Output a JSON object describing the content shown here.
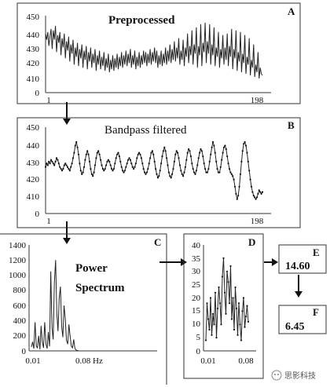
{
  "panels": {
    "A": {
      "letter": "A",
      "title": "Preprocessed",
      "yticks": [
        "450",
        "440",
        "430",
        "420",
        "410",
        "0"
      ],
      "xticks": [
        "1",
        "198"
      ]
    },
    "B": {
      "letter": "B",
      "title": "Bandpass filtered",
      "yticks": [
        "450",
        "440",
        "430",
        "420",
        "410",
        "0"
      ],
      "xticks": [
        "1",
        "198"
      ]
    },
    "C": {
      "letter": "C",
      "title_line1": "Power",
      "title_line2": "Spectrum",
      "yticks": [
        "1400",
        "1200",
        "1000",
        "800",
        "600",
        "400",
        "200",
        "0"
      ],
      "xticks": [
        "0.01",
        "0.08 Hz"
      ]
    },
    "D": {
      "letter": "D",
      "yticks": [
        "40",
        "35",
        "30",
        "25",
        "20",
        "15",
        "10",
        "5",
        "0"
      ],
      "xticks": [
        "0.01",
        "0.08"
      ]
    },
    "E": {
      "letter": "E",
      "value": "14.60"
    },
    "F": {
      "letter": "F",
      "value": "6.45"
    }
  },
  "watermark": "思影科技",
  "chart_data": [
    {
      "type": "line",
      "panel": "A",
      "title": "Preprocessed",
      "ylim": [
        405,
        450
      ],
      "x_range": [
        1,
        198
      ],
      "series": [
        {
          "values": [
            440,
            436,
            441,
            432,
            438,
            443,
            430,
            442,
            436,
            445,
            428,
            439,
            434,
            441,
            426,
            437,
            431,
            440,
            424,
            435,
            429,
            438,
            422,
            433,
            427,
            436,
            420,
            431,
            425,
            434,
            419,
            430,
            424,
            433,
            418,
            429,
            423,
            432,
            417,
            428,
            422,
            431,
            418,
            427,
            421,
            430,
            416,
            426,
            420,
            429,
            417,
            425,
            419,
            428,
            416,
            424,
            418,
            427,
            415,
            423,
            417,
            426,
            416,
            424,
            418,
            427,
            417,
            425,
            419,
            428,
            418,
            426,
            420,
            429,
            419,
            427,
            421,
            430,
            418,
            426,
            420,
            429,
            417,
            425,
            419,
            428,
            418,
            426,
            420,
            429,
            421,
            428,
            419,
            427,
            421,
            430,
            420,
            428,
            422,
            431,
            421,
            429,
            418,
            426,
            420,
            429,
            419,
            427,
            421,
            431,
            420,
            429,
            422,
            433,
            421,
            430,
            423,
            435,
            422,
            431,
            424,
            437,
            420,
            429,
            423,
            436,
            419,
            431,
            425,
            440,
            421,
            432,
            426,
            442,
            420,
            433,
            427,
            444,
            418,
            432,
            426,
            446,
            419,
            434,
            428,
            447,
            421,
            435,
            427,
            446,
            420,
            433,
            426,
            444,
            419,
            431,
            425,
            441,
            418,
            430,
            424,
            439,
            420,
            431,
            423,
            440,
            419,
            432,
            425,
            443,
            417,
            430,
            424,
            442,
            416,
            428,
            422,
            441,
            415,
            427,
            421,
            439,
            414,
            425,
            420,
            437,
            413,
            423,
            418,
            433,
            412,
            420,
            415,
            428,
            411,
            418,
            414,
            413
          ]
        }
      ]
    },
    {
      "type": "line",
      "panel": "B",
      "title": "Bandpass filtered",
      "ylim": [
        405,
        450
      ],
      "x_range": [
        1,
        198
      ],
      "series": [
        {
          "values": [
            429,
            431,
            430,
            432,
            431,
            433,
            432,
            431,
            430,
            432,
            434,
            433,
            431,
            429,
            428,
            427,
            428,
            430,
            431,
            430,
            429,
            428,
            427,
            429,
            431,
            434,
            437,
            441,
            443,
            440,
            436,
            431,
            427,
            425,
            426,
            429,
            433,
            436,
            438,
            436,
            432,
            428,
            425,
            424,
            426,
            430,
            434,
            437,
            438,
            436,
            433,
            430,
            428,
            427,
            428,
            430,
            432,
            433,
            432,
            430,
            428,
            427,
            428,
            431,
            434,
            436,
            437,
            435,
            432,
            429,
            427,
            426,
            427,
            429,
            431,
            433,
            434,
            433,
            431,
            429,
            428,
            429,
            431,
            434,
            436,
            437,
            436,
            434,
            431,
            428,
            426,
            425,
            426,
            428,
            431,
            434,
            437,
            438,
            436,
            432,
            428,
            425,
            423,
            424,
            427,
            431,
            435,
            438,
            440,
            438,
            434,
            430,
            426,
            424,
            423,
            425,
            428,
            432,
            436,
            438,
            437,
            434,
            430,
            427,
            425,
            424,
            426,
            429,
            433,
            437,
            439,
            438,
            435,
            431,
            428,
            426,
            425,
            427,
            430,
            434,
            437,
            439,
            438,
            435,
            431,
            428,
            426,
            426,
            428,
            432,
            436,
            440,
            443,
            441,
            437,
            432,
            428,
            426,
            426,
            429,
            433,
            437,
            440,
            441,
            439,
            435,
            431,
            428,
            426,
            425,
            424,
            422,
            418,
            414,
            411,
            413,
            418,
            425,
            432,
            438,
            442,
            443,
            441,
            437,
            432,
            427,
            422,
            418,
            415,
            413,
            412,
            411,
            412,
            414,
            416,
            415,
            414,
            415
          ]
        }
      ]
    },
    {
      "type": "line",
      "panel": "C",
      "title": "Power Spectrum",
      "xlabel": "Hz",
      "ylim": [
        0,
        1400
      ],
      "x_range": [
        0.01,
        0.08
      ],
      "series": [
        {
          "values": [
            50,
            120,
            30,
            380,
            60,
            40,
            200,
            20,
            330,
            120,
            40,
            380,
            90,
            30,
            250,
            60,
            1050,
            300,
            150,
            900,
            1200,
            500,
            260,
            700,
            850,
            320,
            180,
            600,
            420,
            140,
            90,
            350,
            200,
            60,
            40,
            150,
            30,
            10,
            5,
            0
          ]
        }
      ]
    },
    {
      "type": "line",
      "panel": "D",
      "ylim": [
        0,
        40
      ],
      "x_range": [
        0.01,
        0.08
      ],
      "series": [
        {
          "values": [
            4,
            18,
            12,
            8,
            20,
            6,
            14,
            10,
            22,
            5,
            16,
            24,
            18,
            10,
            28,
            35,
            22,
            14,
            30,
            26,
            18,
            32,
            12,
            20,
            8,
            24,
            16,
            6,
            18,
            10,
            4,
            15,
            20,
            9,
            13,
            17,
            11
          ]
        }
      ]
    }
  ]
}
